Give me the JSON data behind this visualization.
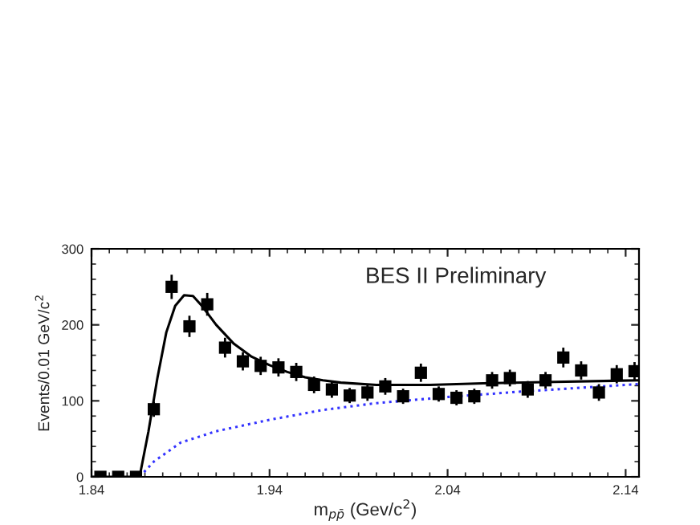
{
  "chart_data": {
    "type": "scatter",
    "xlabel": "m$_{pp̄}$ (Gev/c$^{2}$)",
    "ylabel": "Events/0.01 GeV/c$^{2}$",
    "annotations": [
      "BES II Preliminary"
    ],
    "xlim": [
      1.84,
      2.1475
    ],
    "ylim": [
      0,
      300
    ],
    "xticks": [
      1.84,
      1.94,
      2.04,
      2.14
    ],
    "yticks": [
      0,
      100,
      200,
      300
    ],
    "grid": false,
    "legend": false,
    "series": [
      {
        "color": "#000000",
        "marker": "square",
        "x": [
          1.845,
          1.855,
          1.865,
          1.875,
          1.885,
          1.895,
          1.905,
          1.915,
          1.925,
          1.935,
          1.945,
          1.955,
          1.965,
          1.975,
          1.985,
          1.995,
          2.005,
          2.015,
          2.025,
          2.035,
          2.045,
          2.055,
          2.065,
          2.075,
          2.085,
          2.095,
          2.105,
          2.115,
          2.125,
          2.135,
          2.145
        ],
        "values": [
          0,
          0,
          0,
          89,
          250,
          198,
          227,
          170,
          152,
          146,
          144,
          138,
          121,
          115,
          107,
          111,
          119,
          106,
          137,
          109,
          104,
          106,
          127,
          130,
          115,
          127,
          157,
          140,
          111,
          135,
          139
        ],
        "errors": [
          null,
          null,
          null,
          10,
          16,
          14,
          15,
          13,
          12,
          12,
          12,
          12,
          11,
          11,
          10,
          11,
          11,
          10,
          12,
          10,
          10,
          10,
          11,
          11,
          11,
          11,
          13,
          12,
          11,
          12,
          12
        ]
      },
      {
        "type": "line",
        "color": "#000000",
        "line_style": "solid",
        "marker": "none",
        "x": [
          1.84,
          1.867,
          1.872,
          1.877,
          1.882,
          1.887,
          1.892,
          1.897,
          1.902,
          1.91,
          1.92,
          1.93,
          1.94,
          1.95,
          1.96,
          1.97,
          1.98,
          2.0,
          2.03,
          2.06,
          2.1,
          2.1475
        ],
        "values": [
          0,
          0,
          60,
          130,
          190,
          225,
          239,
          238,
          225,
          200,
          175,
          158,
          147,
          138,
          131,
          127,
          124,
          121,
          121,
          123,
          125,
          127
        ]
      },
      {
        "type": "line",
        "color": "#3333ff",
        "line_style": "dotted",
        "marker": "none",
        "x": [
          1.867,
          1.875,
          1.89,
          1.91,
          1.94,
          1.97,
          2.0,
          2.04,
          2.08,
          2.12,
          2.1475
        ],
        "values": [
          0,
          20,
          45,
          60,
          75,
          88,
          97,
          105,
          112,
          118,
          122
        ]
      }
    ]
  }
}
